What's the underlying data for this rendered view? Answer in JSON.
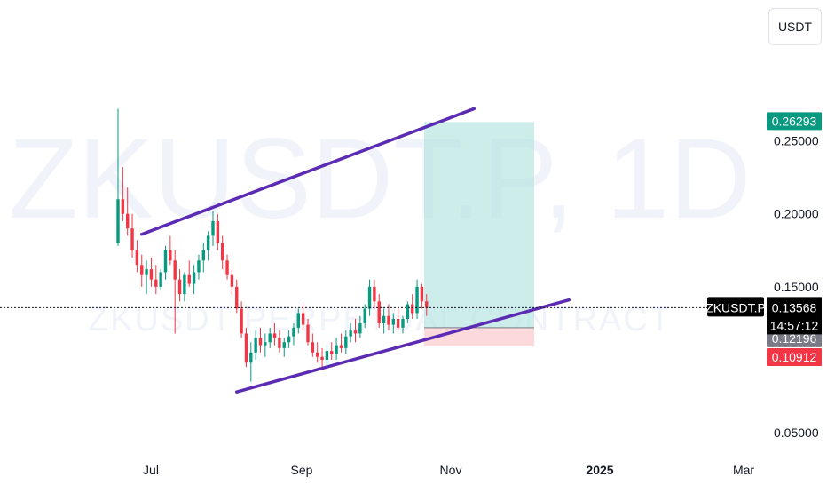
{
  "currency_button": "USDT",
  "watermark": {
    "top": "ZKUSDT.P, 1D",
    "bottom": "ZKUSDT PERPETUAL CONTRACT"
  },
  "symbol_label": "ZKUSDT.P",
  "price_labels": {
    "target": "0.26293",
    "current": "0.13568",
    "countdown": "14:57:12",
    "entry": "0.12196",
    "stop": "0.10912"
  },
  "colors": {
    "up": "#089981",
    "down": "#f23645",
    "channel": "#5b2bb3",
    "target_zone": "#b2e3df",
    "stop_zone": "#fbd0d2",
    "target_label": "#089981",
    "entry_label": "#787b86",
    "stop_label": "#f23645",
    "current_label": "#000000"
  },
  "chart_data": {
    "type": "candlestick",
    "symbol": "ZKUSDT.P",
    "interval": "1D",
    "x_ticks": [
      "Jul",
      "Sep",
      "Nov",
      "2025",
      "Mar"
    ],
    "y_ticks": [
      "0.05000",
      "0.15000",
      "0.20000",
      "0.25000"
    ],
    "ylim": [
      0.03,
      0.31
    ],
    "current_price": 0.13568,
    "series": [
      {
        "name": "ohlc",
        "values": [
          [
            0.18,
            0.272,
            0.178,
            0.21
          ],
          [
            0.21,
            0.232,
            0.195,
            0.2
          ],
          [
            0.2,
            0.218,
            0.185,
            0.19
          ],
          [
            0.19,
            0.2,
            0.17,
            0.175
          ],
          [
            0.175,
            0.182,
            0.16,
            0.165
          ],
          [
            0.165,
            0.172,
            0.15,
            0.158
          ],
          [
            0.158,
            0.168,
            0.145,
            0.162
          ],
          [
            0.162,
            0.17,
            0.15,
            0.155
          ],
          [
            0.155,
            0.165,
            0.145,
            0.15
          ],
          [
            0.15,
            0.162,
            0.148,
            0.16
          ],
          [
            0.16,
            0.178,
            0.155,
            0.175
          ],
          [
            0.175,
            0.185,
            0.165,
            0.168
          ],
          [
            0.168,
            0.175,
            0.118,
            0.155
          ],
          [
            0.155,
            0.162,
            0.14,
            0.145
          ],
          [
            0.145,
            0.16,
            0.14,
            0.158
          ],
          [
            0.158,
            0.168,
            0.15,
            0.152
          ],
          [
            0.152,
            0.165,
            0.145,
            0.16
          ],
          [
            0.16,
            0.172,
            0.155,
            0.168
          ],
          [
            0.168,
            0.18,
            0.16,
            0.175
          ],
          [
            0.175,
            0.188,
            0.168,
            0.185
          ],
          [
            0.185,
            0.202,
            0.178,
            0.195
          ],
          [
            0.195,
            0.2,
            0.175,
            0.18
          ],
          [
            0.18,
            0.185,
            0.162,
            0.168
          ],
          [
            0.168,
            0.172,
            0.155,
            0.158
          ],
          [
            0.158,
            0.162,
            0.145,
            0.15
          ],
          [
            0.15,
            0.155,
            0.132,
            0.135
          ],
          [
            0.135,
            0.14,
            0.115,
            0.118
          ],
          [
            0.118,
            0.122,
            0.095,
            0.098
          ],
          [
            0.098,
            0.112,
            0.085,
            0.105
          ],
          [
            0.105,
            0.12,
            0.1,
            0.115
          ],
          [
            0.115,
            0.122,
            0.105,
            0.11
          ],
          [
            0.11,
            0.118,
            0.102,
            0.112
          ],
          [
            0.112,
            0.122,
            0.108,
            0.118
          ],
          [
            0.118,
            0.125,
            0.11,
            0.115
          ],
          [
            0.115,
            0.12,
            0.105,
            0.108
          ],
          [
            0.108,
            0.115,
            0.102,
            0.112
          ],
          [
            0.112,
            0.12,
            0.108,
            0.116
          ],
          [
            0.116,
            0.125,
            0.11,
            0.122
          ],
          [
            0.122,
            0.135,
            0.118,
            0.132
          ],
          [
            0.132,
            0.138,
            0.12,
            0.124
          ],
          [
            0.124,
            0.128,
            0.11,
            0.112
          ],
          [
            0.112,
            0.118,
            0.102,
            0.105
          ],
          [
            0.105,
            0.112,
            0.098,
            0.102
          ],
          [
            0.102,
            0.108,
            0.095,
            0.1
          ],
          [
            0.1,
            0.11,
            0.096,
            0.106
          ],
          [
            0.106,
            0.112,
            0.1,
            0.104
          ],
          [
            0.104,
            0.115,
            0.1,
            0.11
          ],
          [
            0.11,
            0.118,
            0.105,
            0.108
          ],
          [
            0.108,
            0.12,
            0.104,
            0.116
          ],
          [
            0.116,
            0.125,
            0.112,
            0.12
          ],
          [
            0.12,
            0.128,
            0.112,
            0.118
          ],
          [
            0.118,
            0.13,
            0.115,
            0.125
          ],
          [
            0.125,
            0.138,
            0.122,
            0.135
          ],
          [
            0.135,
            0.155,
            0.13,
            0.15
          ],
          [
            0.15,
            0.155,
            0.135,
            0.14
          ],
          [
            0.14,
            0.145,
            0.122,
            0.125
          ],
          [
            0.125,
            0.135,
            0.118,
            0.13
          ],
          [
            0.13,
            0.138,
            0.12,
            0.124
          ],
          [
            0.124,
            0.132,
            0.118,
            0.128
          ],
          [
            0.128,
            0.135,
            0.12,
            0.122
          ],
          [
            0.122,
            0.13,
            0.118,
            0.128
          ],
          [
            0.128,
            0.14,
            0.125,
            0.138
          ],
          [
            0.138,
            0.145,
            0.128,
            0.132
          ],
          [
            0.132,
            0.155,
            0.128,
            0.15
          ],
          [
            0.15,
            0.152,
            0.135,
            0.14
          ],
          [
            0.14,
            0.145,
            0.13,
            0.13568
          ]
        ]
      }
    ],
    "channel": {
      "upper": [
        {
          "date_index": 5,
          "price": 0.186
        },
        {
          "date_index": 75,
          "price": 0.272
        }
      ],
      "lower": [
        {
          "date_index": 25,
          "price": 0.078
        },
        {
          "date_index": 95,
          "price": 0.141
        }
      ]
    },
    "position": {
      "type": "long",
      "entry": 0.12196,
      "target": 0.26293,
      "stop": 0.10912
    }
  }
}
